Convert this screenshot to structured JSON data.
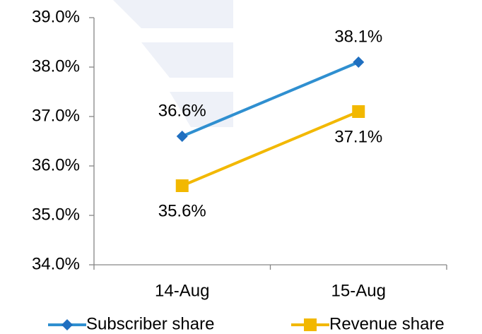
{
  "chart_data": {
    "type": "line",
    "categories": [
      "14-Aug",
      "15-Aug"
    ],
    "series": [
      {
        "name": "Subscriber share",
        "color": "#2f8fd0",
        "marker": "diamond",
        "marker_color": "#1f6fc0",
        "values": [
          36.6,
          38.1
        ],
        "value_labels": [
          "36.6%",
          "38.1%"
        ]
      },
      {
        "name": "Revenue share",
        "color": "#f2b800",
        "marker": "square",
        "marker_color": "#f2b800",
        "values": [
          35.6,
          37.1
        ],
        "value_labels": [
          "35.6%",
          "37.1%"
        ]
      }
    ],
    "ylim": [
      34,
      39
    ],
    "yticks": [
      {
        "value": 34,
        "label": "34.0%"
      },
      {
        "value": 35,
        "label": "35.0%"
      },
      {
        "value": 36,
        "label": "36.0%"
      },
      {
        "value": 37,
        "label": "37.0%"
      },
      {
        "value": 38,
        "label": "38.0%"
      },
      {
        "value": 39,
        "label": "39.0%"
      }
    ],
    "grid": false,
    "legend": "bottom"
  }
}
